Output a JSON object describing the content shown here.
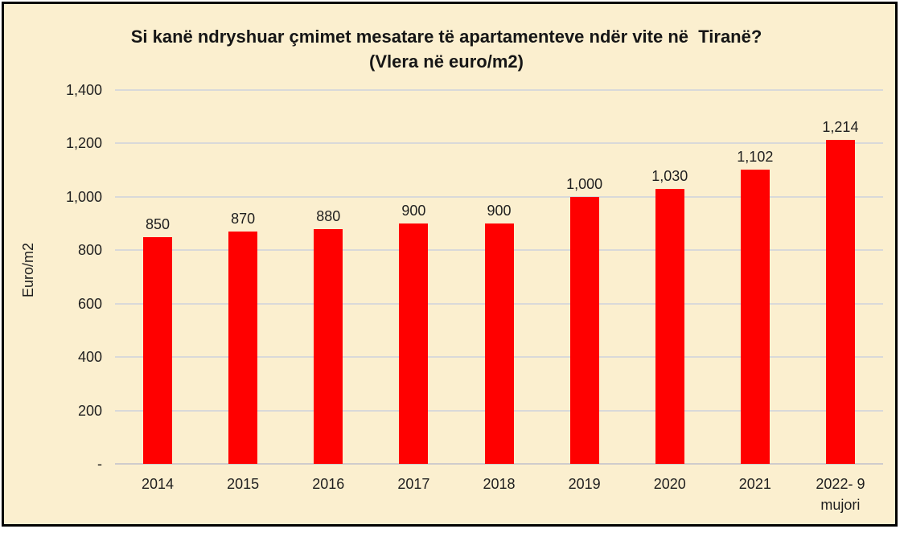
{
  "frame": {
    "background_color": "#fbefcf",
    "border_color": "#000000"
  },
  "title": {
    "line1": "Si kanë ndryshuar çmimet mesatare të apartamenteve ndër vite në  Tiranë?",
    "line2": "(Vlera në euro/m2)"
  },
  "chart_data": {
    "type": "bar",
    "title": "Si kanë ndryshuar çmimet mesatare të apartamenteve ndër vite në Tiranë?",
    "subtitle": "(Vlera në euro/m2)",
    "categories": [
      "2014",
      "2015",
      "2016",
      "2017",
      "2018",
      "2019",
      "2020",
      "2021",
      "2022- 9 mujori"
    ],
    "values": [
      850,
      870,
      880,
      900,
      900,
      1000,
      1030,
      1102,
      1214
    ],
    "value_labels": [
      "850",
      "870",
      "880",
      "900",
      "900",
      "1,000",
      "1,030",
      "1,102",
      "1,214"
    ],
    "xlabel": "",
    "ylabel": "Euro/m2",
    "ylim": [
      0,
      1400
    ],
    "ytick_step": 200,
    "ytick_labels": [
      "-",
      "200",
      "400",
      "600",
      "800",
      "1,000",
      "1,200",
      "1,400"
    ],
    "grid": true,
    "legend": false,
    "bar_color": "#ff0000",
    "gridline_color": "#d9d9d9",
    "plot_background": "#fbefcf"
  }
}
